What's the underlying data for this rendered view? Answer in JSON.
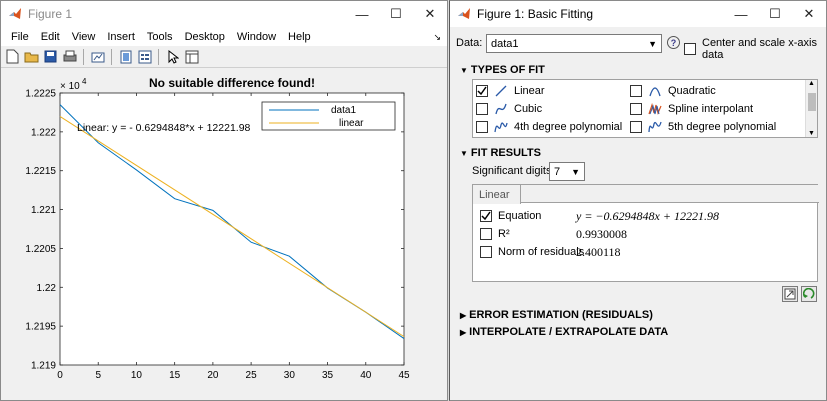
{
  "figure_window": {
    "title": "Figure 1",
    "menu": [
      "File",
      "Edit",
      "View",
      "Insert",
      "Tools",
      "Desktop",
      "Window",
      "Help"
    ],
    "toolbar_icons": [
      "new-file-icon",
      "open-file-icon",
      "save-icon",
      "print-icon",
      "link-plot-icon",
      "hide-tools-icon",
      "show-tools-icon",
      "edit-plot-icon",
      "property-inspector-icon"
    ]
  },
  "chart_data": {
    "type": "line",
    "title": "No suitable difference found!",
    "exponent_label": "× 10",
    "exponent_power": "4",
    "x": [
      0,
      5,
      10,
      15,
      20,
      25,
      30,
      35,
      40,
      45
    ],
    "x_ticks": [
      "0",
      "5",
      "10",
      "15",
      "20",
      "25",
      "30",
      "35",
      "40",
      "45"
    ],
    "y_ticks": [
      "1.2225",
      "1.222",
      "1.2215",
      "1.221",
      "1.2205",
      "1.22",
      "1.2195",
      "1.219"
    ],
    "y_tick_values": [
      12225,
      12220,
      12215,
      12210,
      12205,
      12200,
      12195,
      12190
    ],
    "xlim": [
      0,
      45
    ],
    "ylim": [
      12190,
      12225
    ],
    "series": [
      {
        "name": "data1",
        "color": "#0072BD",
        "x": [
          0,
          5,
          10,
          15,
          20,
          25,
          30,
          35,
          40,
          45
        ],
        "y": [
          12223.5,
          12218.6,
          12215.1,
          12211.4,
          12209.9,
          12205.8,
          12204.0,
          12199.9,
          12196.8,
          12193.4
        ]
      },
      {
        "name": "linear",
        "color": "#EDB120",
        "x": [
          0,
          45
        ],
        "y": [
          12221.98,
          12193.65
        ]
      }
    ],
    "annotation": "Linear:  y = - 0.6294848*x + 12221.98",
    "legend": {
      "position": "top-right",
      "entries": [
        "data1",
        "linear"
      ]
    }
  },
  "basic_fitting": {
    "title": "Figure 1: Basic Fitting",
    "data_label": "Data:",
    "data_value": "data1",
    "center_scale_label": "Center and scale x-axis data",
    "types_of_fit_header": "TYPES OF FIT",
    "fit_types": [
      {
        "label": "Linear",
        "checked": true,
        "icon": "linear-fit-icon"
      },
      {
        "label": "Quadratic",
        "checked": false,
        "icon": "quadratic-fit-icon"
      },
      {
        "label": "Cubic",
        "checked": false,
        "icon": "cubic-fit-icon"
      },
      {
        "label": "Spline interpolant",
        "checked": false,
        "icon": "spline-fit-icon"
      },
      {
        "label": "4th degree polynomial",
        "checked": false,
        "icon": "poly4-fit-icon"
      },
      {
        "label": "5th degree polynomial",
        "checked": false,
        "icon": "poly5-fit-icon"
      }
    ],
    "fit_results_header": "FIT RESULTS",
    "sig_digits_label": "Significant digits:",
    "sig_digits_value": "7",
    "results_tab": "Linear",
    "results": [
      {
        "label": "Equation",
        "checked": true,
        "value": "y = −0.6294848x + 12221.98"
      },
      {
        "label": "R²",
        "checked": false,
        "value": "0.9930008"
      },
      {
        "label": "Norm of residuals",
        "checked": false,
        "value": "2.400118"
      }
    ],
    "error_estimation_header": "ERROR ESTIMATION (RESIDUALS)",
    "interpolate_header": "INTERPOLATE / EXTRAPOLATE DATA"
  }
}
